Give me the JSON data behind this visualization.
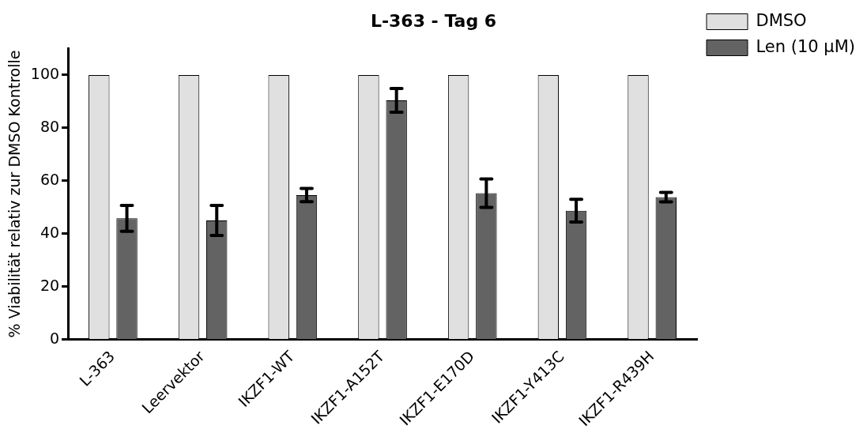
{
  "chart_data": {
    "type": "bar",
    "title": "L-363 - Tag 6",
    "ylabel": "% Viabilität relativ zur DMSO Kontrolle",
    "categories": [
      "L-363",
      "Leervektor",
      "IKZF1-WT",
      "IKZF1-A152T",
      "IKZF1-E170D",
      "IKZF1-Y413C",
      "IKZF1-R439H"
    ],
    "series": [
      {
        "name": "DMSO",
        "color": "#e0e0e0",
        "values": [
          100,
          100,
          100,
          100,
          100,
          100,
          100
        ]
      },
      {
        "name": "Len (10 µM)",
        "color": "#636363",
        "values": [
          45.8,
          45,
          54.6,
          90.4,
          55.3,
          48.7,
          53.8
        ],
        "errors": [
          4.9,
          5.7,
          2.5,
          4.5,
          5.4,
          4.3,
          1.8
        ]
      }
    ],
    "ylim": [
      0,
      110
    ],
    "yticks": [
      0,
      20,
      40,
      60,
      80,
      100
    ],
    "grid": false,
    "legend": "top right"
  }
}
